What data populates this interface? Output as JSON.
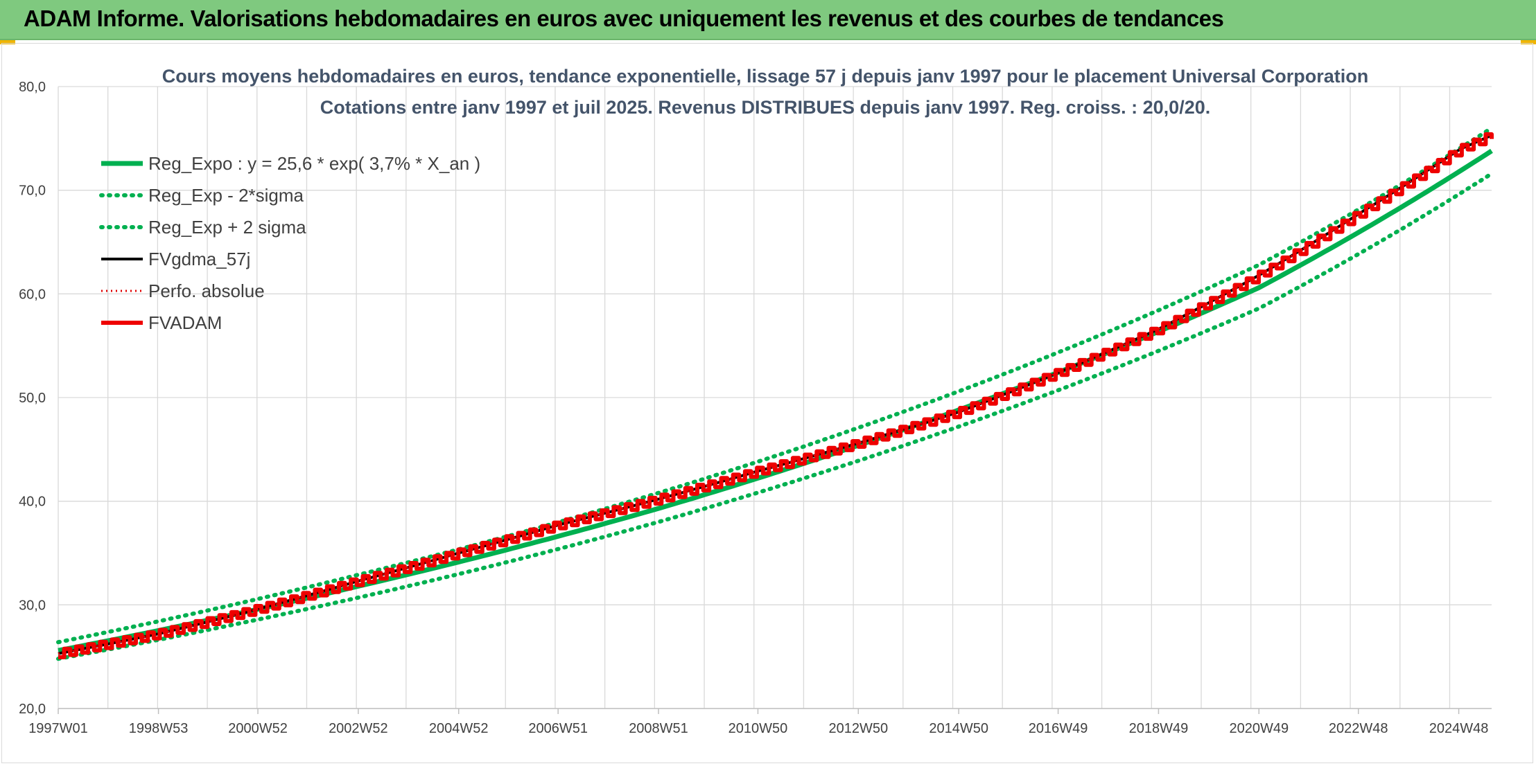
{
  "banner": {
    "title": "ADAM Informe. Valorisations hebdomadaires en euros avec uniquement les revenus et des courbes de tendances"
  },
  "colors": {
    "banner": "#7fc97f",
    "reg": "#00b050",
    "fvgdma": "#000000",
    "perfo": "#e00000",
    "fvadam": "#ee0000",
    "title": "#44546a",
    "grid": "#d9d9d9"
  },
  "chart_data": {
    "type": "line",
    "title": "Cours moyens hebdomadaires en euros, tendance exponentielle, lissage 57 j depuis janv 1997 pour le placement Universal Corporation",
    "subtitle": "Cotations entre janv 1997 et juil 2025. Revenus DISTRIBUES depuis janv 1997. Reg. croiss. : 20,0/20.",
    "ylim": [
      20,
      80
    ],
    "y_ticks": [
      "20,0",
      "30,0",
      "40,0",
      "50,0",
      "60,0",
      "70,0",
      "80,0"
    ],
    "x_ticks": [
      "1997W01",
      "1998W53",
      "2000W52",
      "2002W52",
      "2004W52",
      "2006W51",
      "2008W51",
      "2010W50",
      "2012W50",
      "2014W50",
      "2016W49",
      "2018W49",
      "2020W49",
      "2022W48",
      "2024W48"
    ],
    "grid": true,
    "legend_position": "top-left",
    "series": [
      {
        "name": "Reg_Expo : y = 25,6 * exp( 3,7% *  X_an )",
        "style": "solid",
        "x": [
          "1997W01",
          "2002W52",
          "2008W51",
          "2014W50",
          "2020W49",
          "2025W30"
        ],
        "values": [
          25.6,
          31.8,
          39.3,
          48.8,
          60.6,
          73.8
        ]
      },
      {
        "name": "Reg_Exp - 2*sigma",
        "style": "dotted",
        "x": [
          "1997W01",
          "2002W52",
          "2008W51",
          "2014W50",
          "2020W49",
          "2025W30"
        ],
        "values": [
          24.8,
          30.7,
          38.0,
          47.2,
          58.6,
          71.6
        ]
      },
      {
        "name": "Reg_Exp + 2 sigma",
        "style": "dotted",
        "x": [
          "1997W01",
          "2002W52",
          "2008W51",
          "2014W50",
          "2020W49",
          "2025W30"
        ],
        "values": [
          26.4,
          32.9,
          40.8,
          50.6,
          62.8,
          76.0
        ]
      },
      {
        "name": "FVgdma_57j",
        "style": "solid",
        "x": [
          "1997W01",
          "1998W53",
          "2000W52",
          "2002W52",
          "2004W52",
          "2006W51",
          "2008W51",
          "2010W50",
          "2012W50",
          "2014W50",
          "2016W49",
          "2018W49",
          "2020W49",
          "2022W48",
          "2024W48",
          "2025W30"
        ],
        "values": [
          25.3,
          27.2,
          29.6,
          32.3,
          35.0,
          37.7,
          40.2,
          42.9,
          45.6,
          48.6,
          52.4,
          56.6,
          61.8,
          67.7,
          73.9,
          75.3
        ]
      },
      {
        "name": "Perfo. absolue",
        "style": "dotted",
        "x": [
          "1997W01",
          "1998W53",
          "2000W52",
          "2002W52",
          "2004W52",
          "2006W51",
          "2008W51",
          "2010W50",
          "2012W50",
          "2014W50",
          "2016W49",
          "2018W49",
          "2020W49",
          "2022W48",
          "2024W48",
          "2025W30"
        ],
        "values": [
          25.3,
          27.2,
          29.6,
          32.3,
          35.0,
          37.7,
          40.2,
          42.9,
          45.6,
          48.6,
          52.4,
          56.6,
          61.8,
          67.7,
          73.9,
          75.3
        ]
      },
      {
        "name": "FVADAM",
        "style": "solid-steps",
        "x": [
          "1997W01",
          "1998W53",
          "2000W52",
          "2002W52",
          "2004W52",
          "2006W51",
          "2008W51",
          "2010W50",
          "2012W50",
          "2014W50",
          "2016W49",
          "2018W49",
          "2020W49",
          "2022W48",
          "2024W48",
          "2025W30"
        ],
        "values": [
          25.3,
          27.2,
          29.6,
          32.3,
          35.0,
          37.7,
          40.2,
          42.9,
          45.6,
          48.6,
          52.4,
          56.6,
          61.8,
          67.7,
          73.9,
          75.3
        ]
      }
    ]
  }
}
